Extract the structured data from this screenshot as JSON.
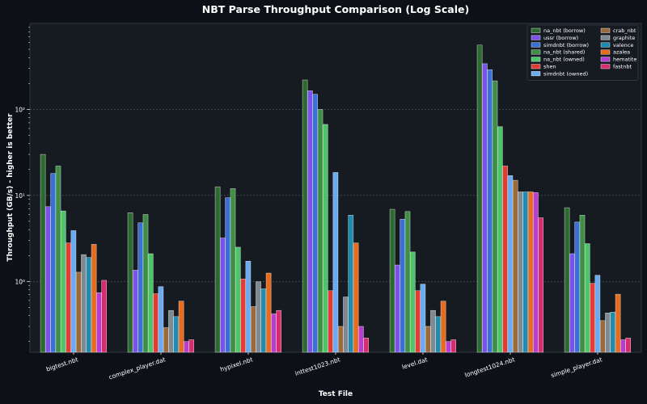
{
  "chart_data": {
    "type": "bar",
    "title": "NBT Parse Throughput Comparison (Log Scale)",
    "xlabel": "Test File",
    "ylabel": "Throughput (GB/s) - higher is better",
    "yscale": "log",
    "ylim": [
      0.15,
      1000
    ],
    "yticks": [
      1,
      10,
      100
    ],
    "ytick_labels": [
      "10⁰",
      "10¹",
      "10²"
    ],
    "grid": true,
    "legend_position": "top-right",
    "categories": [
      "bigtest.nbt",
      "complex_player.dat",
      "hypixel.nbt",
      "inttest1023.nbt",
      "level.dat",
      "longtest1024.nbt",
      "simple_player.dat"
    ],
    "series": [
      {
        "name": "na_nbt (borrow)",
        "color": "#2d6a2f",
        "values": [
          30,
          6.3,
          12.6,
          220,
          6.9,
          560,
          7.2
        ]
      },
      {
        "name": "ussr (borrow)",
        "color": "#7b52e8",
        "values": [
          7.4,
          1.35,
          3.2,
          165,
          1.55,
          340,
          2.1
        ]
      },
      {
        "name": "simdnbt (borrow)",
        "color": "#3b6fd8",
        "values": [
          18,
          4.8,
          9.4,
          150,
          5.3,
          290,
          4.9
        ]
      },
      {
        "name": "na_nbt (shared)",
        "color": "#3e8e44",
        "values": [
          22,
          6.0,
          12.0,
          100,
          6.5,
          215,
          5.9
        ]
      },
      {
        "name": "na_nbt (owned)",
        "color": "#4cc46a",
        "values": [
          6.6,
          2.1,
          2.5,
          67,
          2.2,
          63,
          2.75
        ]
      },
      {
        "name": "shen",
        "color": "#e03b35",
        "values": [
          2.8,
          0.72,
          1.07,
          0.78,
          0.78,
          22,
          0.95
        ]
      },
      {
        "name": "simdnbt (owned)",
        "color": "#6aaaf0",
        "values": [
          3.9,
          0.87,
          1.72,
          18.5,
          0.93,
          17,
          1.18
        ]
      },
      {
        "name": "crab_nbt",
        "color": "#9a6a3c",
        "values": [
          1.28,
          0.29,
          0.51,
          0.3,
          0.3,
          15,
          0.35
        ]
      },
      {
        "name": "graphite",
        "color": "#808890",
        "values": [
          2.05,
          0.46,
          0.99,
          0.66,
          0.46,
          11,
          0.43
        ]
      },
      {
        "name": "valence",
        "color": "#1f8bb0",
        "values": [
          1.9,
          0.39,
          0.82,
          5.9,
          0.39,
          11,
          0.44
        ]
      },
      {
        "name": "azalea",
        "color": "#ea6a1c",
        "values": [
          2.7,
          0.59,
          1.25,
          2.8,
          0.59,
          11,
          0.71
        ]
      },
      {
        "name": "hematite",
        "color": "#b53dd0",
        "values": [
          0.74,
          0.2,
          0.42,
          0.3,
          0.2,
          10.8,
          0.21
        ]
      },
      {
        "name": "fastnbt",
        "color": "#d62d6f",
        "values": [
          1.03,
          0.21,
          0.46,
          0.22,
          0.21,
          5.5,
          0.22
        ]
      }
    ]
  }
}
